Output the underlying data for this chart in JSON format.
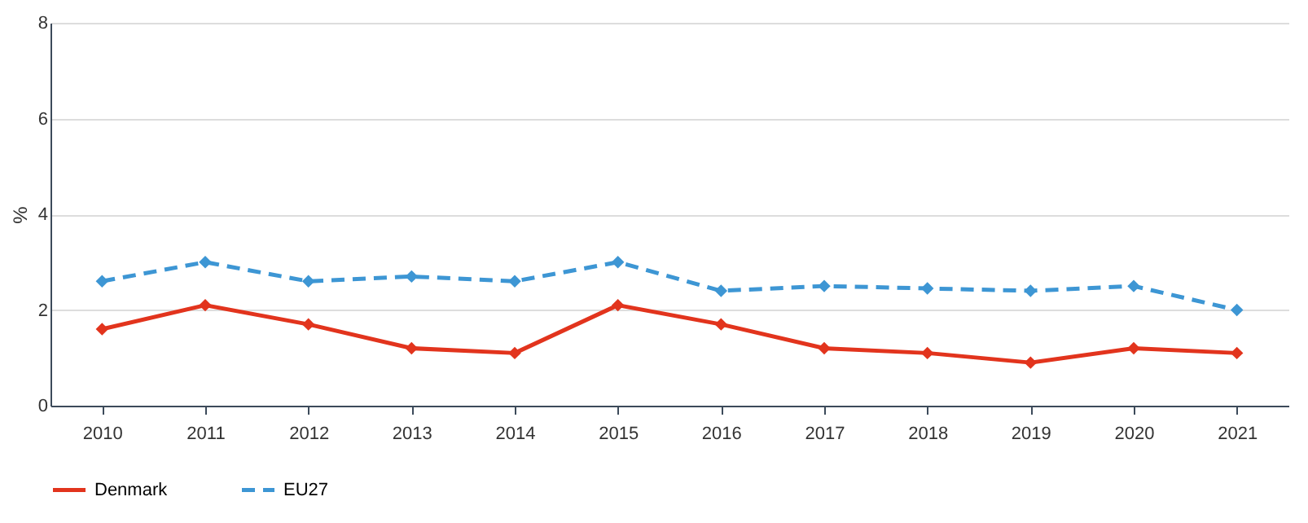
{
  "chart_data": {
    "type": "line",
    "ylabel": "%",
    "categories": [
      "2010",
      "2011",
      "2012",
      "2013",
      "2014",
      "2015",
      "2016",
      "2017",
      "2018",
      "2019",
      "2020",
      "2021"
    ],
    "series": [
      {
        "name": "Denmark",
        "color": "#e2341d",
        "line_style": "solid",
        "values": [
          1.6,
          2.1,
          1.7,
          1.2,
          1.1,
          2.1,
          1.7,
          1.2,
          1.1,
          0.9,
          1.2,
          1.1
        ]
      },
      {
        "name": "EU27",
        "color": "#3d96d4",
        "line_style": "dashed",
        "values": [
          2.6,
          3.0,
          2.6,
          2.7,
          2.6,
          3.0,
          2.4,
          2.5,
          2.45,
          2.4,
          2.5,
          2.0
        ]
      }
    ],
    "ylim": [
      0,
      8
    ],
    "yticks": [
      0,
      2,
      4,
      6,
      8
    ],
    "grid": "y",
    "legend": "bottom",
    "marker": "diamond"
  }
}
